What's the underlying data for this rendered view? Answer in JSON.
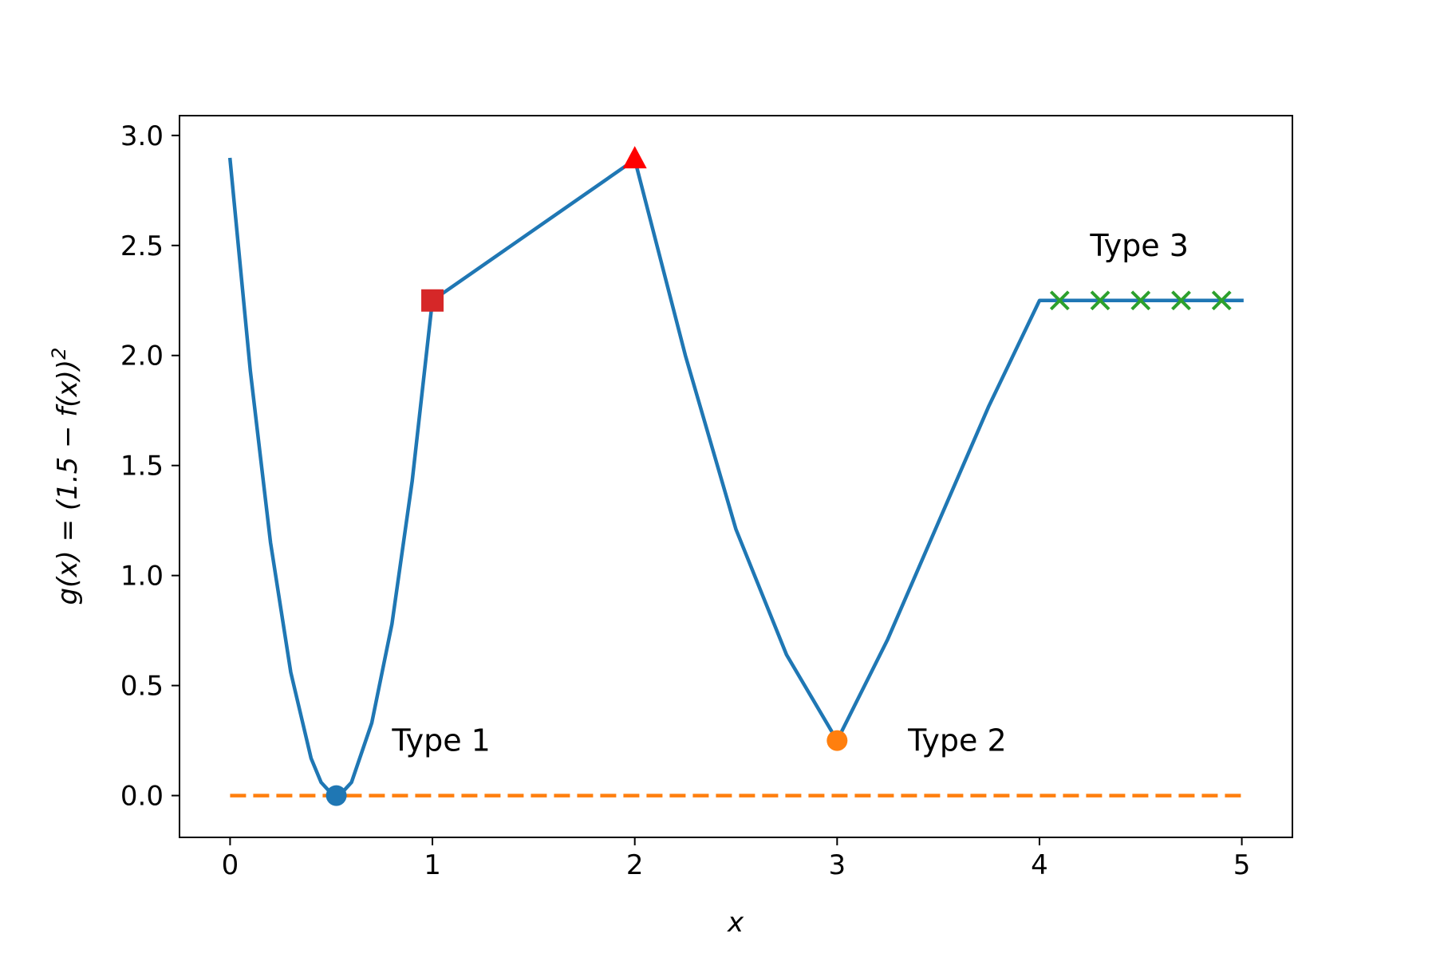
{
  "chart_data": {
    "type": "line",
    "title": "",
    "xlabel": "x",
    "ylabel": "g(x) = (1.5 − f(x))",
    "ylabel_sup": "2",
    "xlim": [
      -0.25,
      5.25
    ],
    "ylim": [
      -0.19,
      3.09
    ],
    "x_ticks": [
      {
        "value": 0,
        "label": "0"
      },
      {
        "value": 1,
        "label": "1"
      },
      {
        "value": 2,
        "label": "2"
      },
      {
        "value": 3,
        "label": "3"
      },
      {
        "value": 4,
        "label": "4"
      },
      {
        "value": 5,
        "label": "5"
      }
    ],
    "y_ticks": [
      {
        "value": 0.0,
        "label": "0.0"
      },
      {
        "value": 0.5,
        "label": "0.5"
      },
      {
        "value": 1.0,
        "label": "1.0"
      },
      {
        "value": 1.5,
        "label": "1.5"
      },
      {
        "value": 2.0,
        "label": "2.0"
      },
      {
        "value": 2.5,
        "label": "2.5"
      },
      {
        "value": 3.0,
        "label": "3.0"
      }
    ],
    "grid": false,
    "curve": {
      "color": "#1f77b4",
      "x": [
        0,
        0.1,
        0.2,
        0.3,
        0.4,
        0.45,
        0.5,
        0.525,
        0.55,
        0.6,
        0.7,
        0.8,
        0.9,
        1.0,
        2.0,
        2.25,
        2.5,
        2.75,
        3.0,
        3.25,
        3.5,
        3.75,
        4.0,
        5.0
      ],
      "y": [
        2.89,
        1.93,
        1.15,
        0.56,
        0.17,
        0.06,
        0.01,
        0.0,
        0.01,
        0.06,
        0.33,
        0.78,
        1.43,
        2.25,
        2.89,
        2.0,
        1.21,
        0.64,
        0.25,
        0.71,
        1.24,
        1.77,
        2.25,
        2.25
      ]
    },
    "reference_line": {
      "y": 0,
      "x": [
        0,
        5
      ],
      "color": "#ff7f0e",
      "style": "dashed"
    },
    "markers": [
      {
        "shape": "circle",
        "x": 0.525,
        "y": 0.0,
        "color": "#1f77b4"
      },
      {
        "shape": "square",
        "x": 1.0,
        "y": 2.25,
        "color": "#d62728"
      },
      {
        "shape": "triangle",
        "x": 2.0,
        "y": 2.89,
        "color": "#ff0000"
      },
      {
        "shape": "circle",
        "x": 3.0,
        "y": 0.25,
        "color": "#ff7f0e"
      },
      {
        "shape": "x",
        "x": 4.1,
        "y": 2.25,
        "color": "#2ca02c"
      },
      {
        "shape": "x",
        "x": 4.3,
        "y": 2.25,
        "color": "#2ca02c"
      },
      {
        "shape": "x",
        "x": 4.5,
        "y": 2.25,
        "color": "#2ca02c"
      },
      {
        "shape": "x",
        "x": 4.7,
        "y": 2.25,
        "color": "#2ca02c"
      },
      {
        "shape": "x",
        "x": 4.9,
        "y": 2.25,
        "color": "#2ca02c"
      }
    ],
    "annotations": [
      {
        "text": "Type 1",
        "x": 0.8,
        "y": 0.25
      },
      {
        "text": "Type 2",
        "x": 3.35,
        "y": 0.25
      },
      {
        "text": "Type 3",
        "x": 4.25,
        "y": 2.5
      }
    ]
  }
}
